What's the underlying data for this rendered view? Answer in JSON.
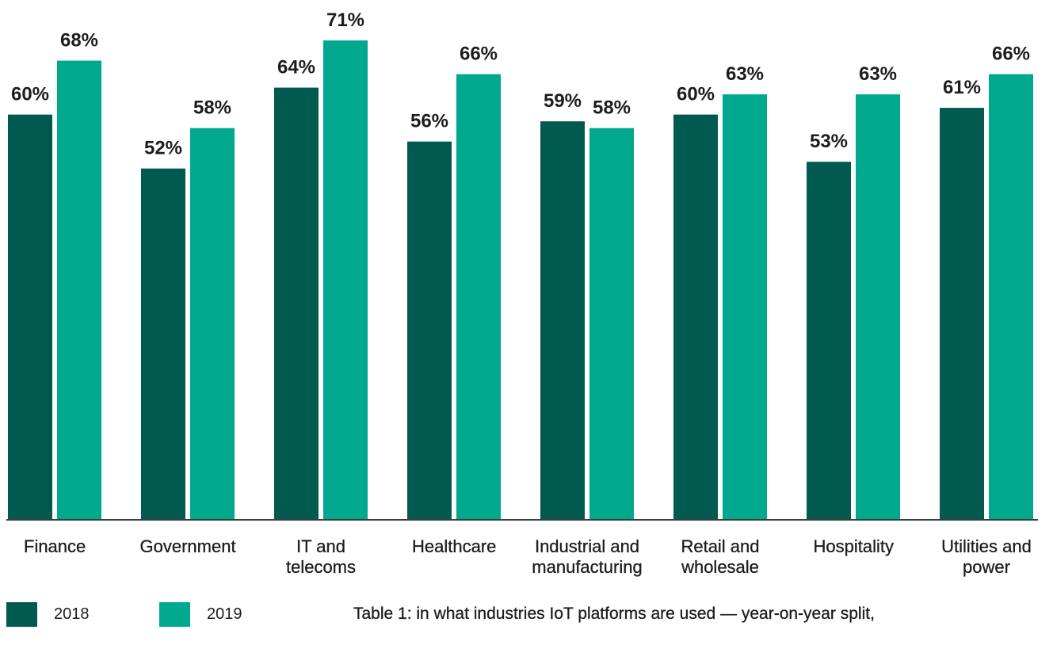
{
  "chart_data": {
    "type": "bar",
    "categories": [
      "Finance",
      "Government",
      "IT and telecoms",
      "Healthcare",
      "Industrial and manufacturing",
      "Retail and wholesale",
      "Hospitality",
      "Utilities and power"
    ],
    "series": [
      {
        "name": "2018",
        "color": "#005a4f",
        "values": [
          60,
          52,
          64,
          56,
          59,
          60,
          53,
          61
        ]
      },
      {
        "name": "2019",
        "color": "#00a88e",
        "values": [
          68,
          58,
          71,
          66,
          58,
          63,
          63,
          66
        ]
      }
    ],
    "value_suffix": "%",
    "caption": "Table 1: in what industries IoT platforms are used — year-on-year split,",
    "ylim": [
      0,
      77
    ],
    "grid": false,
    "legend_position": "bottom-left",
    "axis_color": "#3c3c3b",
    "text_color": "#1d1d1b"
  }
}
